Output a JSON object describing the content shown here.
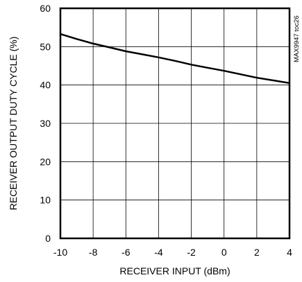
{
  "chart_data": {
    "type": "line",
    "title": "",
    "xlabel": "RECEIVER INPUT (dBm)",
    "ylabel": "RECEIVER OUTPUT DUTY CYCLE (%)",
    "xlim": [
      -10,
      4
    ],
    "ylim": [
      0,
      60
    ],
    "x_ticks": [
      "-10",
      "-8",
      "-6",
      "-4",
      "-2",
      "0",
      "2",
      "4"
    ],
    "y_ticks": [
      "0",
      "10",
      "20",
      "30",
      "40",
      "50",
      "60"
    ],
    "grid": true,
    "annotation": "MAX9947 toc26",
    "series": [
      {
        "x": [
          -10,
          -9,
          -8,
          -7,
          -6,
          -5,
          -4,
          -3,
          -2,
          -1,
          0,
          1,
          2,
          3,
          4
        ],
        "y": [
          53.3,
          52.0,
          50.8,
          49.8,
          48.8,
          48.0,
          47.2,
          46.3,
          45.3,
          44.5,
          43.7,
          42.8,
          41.9,
          41.2,
          40.5
        ]
      }
    ]
  }
}
